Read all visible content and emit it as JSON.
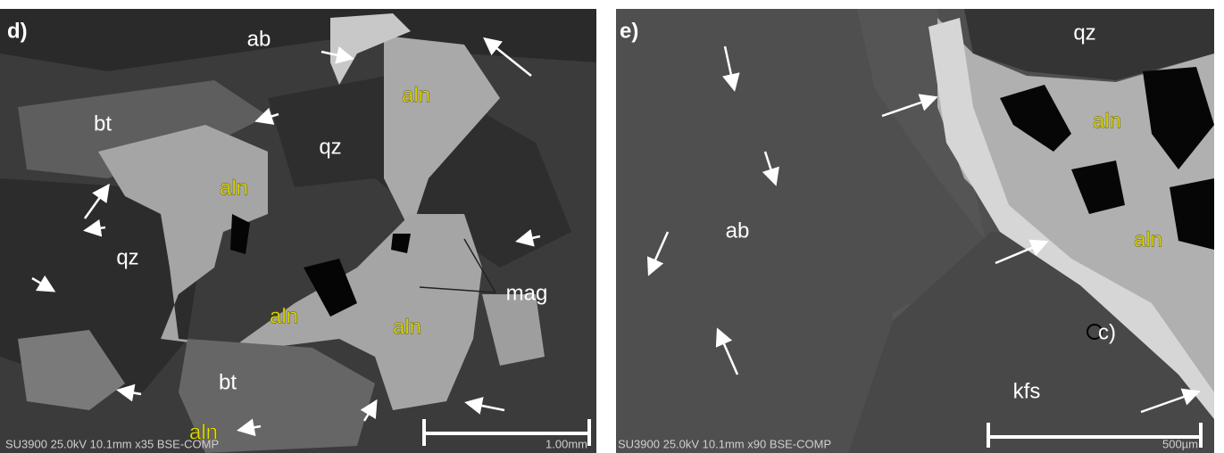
{
  "panels": [
    {
      "label": "d)",
      "info": "SU3900 25.0kV 10.1mm x35 BSE-COMP",
      "scale": "1.00mm",
      "annotations": [
        {
          "text": "ab",
          "color": "#ffffff"
        },
        {
          "text": "bt",
          "color": "#ffffff"
        },
        {
          "text": "qz",
          "color": "#ffffff"
        },
        {
          "text": "aln",
          "color": "#e8e000"
        },
        {
          "text": "aln",
          "color": "#e8e000"
        },
        {
          "text": "qz",
          "color": "#ffffff"
        },
        {
          "text": "aln",
          "color": "#e8e000"
        },
        {
          "text": "aln",
          "color": "#e8e000"
        },
        {
          "text": "mag",
          "color": "#ffffff"
        },
        {
          "text": "bt",
          "color": "#ffffff"
        },
        {
          "text": "aln",
          "color": "#e8e000"
        }
      ]
    },
    {
      "label": "e)",
      "info": "SU3900 25.0kV 10.1mm x90 BSE-COMP",
      "scale": "500µm",
      "annotations": [
        {
          "text": "qz",
          "color": "#ffffff"
        },
        {
          "text": "aln",
          "color": "#e8e000"
        },
        {
          "text": "aln",
          "color": "#e8e000"
        },
        {
          "text": "ab",
          "color": "#ffffff"
        },
        {
          "text": "c)",
          "color": "#ffffff"
        },
        {
          "text": "kfs",
          "color": "#ffffff"
        }
      ]
    }
  ]
}
